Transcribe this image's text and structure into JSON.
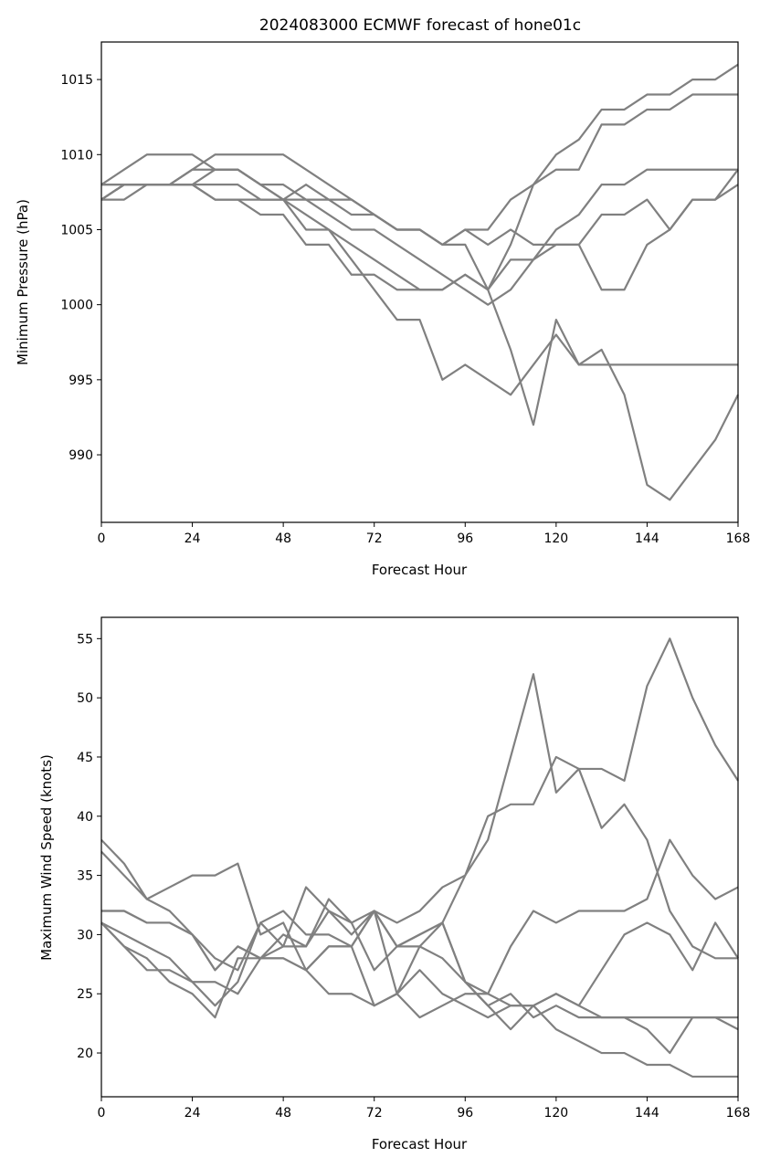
{
  "title": "2024083000 ECMWF forecast of hone01c",
  "line_color": "#808080",
  "chart_data": [
    {
      "type": "line",
      "title": "2024083000 ECMWF forecast of hone01c",
      "xlabel": "Forecast Hour",
      "ylabel": "Minimum Pressure (hPa)",
      "xlim": [
        0,
        168
      ],
      "ylim": [
        985.5,
        1017.5
      ],
      "xticks": [
        0,
        24,
        48,
        72,
        96,
        120,
        144,
        168
      ],
      "yticks": [
        990,
        995,
        1000,
        1005,
        1010,
        1015
      ],
      "grid": false,
      "series": [
        {
          "x": [
            0,
            6,
            12,
            18,
            24,
            30,
            36,
            42,
            48,
            54,
            60,
            66,
            72,
            78,
            84,
            90,
            96,
            102,
            108,
            114,
            120,
            126,
            132,
            138,
            144,
            150,
            156,
            162,
            168
          ],
          "values": [
            1008,
            1008,
            1008,
            1008,
            1008,
            1009,
            1009,
            1008,
            1008,
            1007,
            1007,
            1006,
            1006,
            1005,
            1005,
            1004,
            1005,
            1005,
            1007,
            1008,
            1009,
            1009,
            1012,
            1012,
            1013,
            1013,
            1014,
            1014,
            1014
          ]
        },
        {
          "x": [
            0,
            6,
            12,
            18,
            24,
            30,
            36,
            42,
            48,
            54,
            60,
            66,
            72,
            78,
            84,
            90,
            96,
            102,
            108,
            114,
            120,
            126,
            132,
            138,
            144,
            150,
            156,
            162,
            168
          ],
          "values": [
            1007,
            1008,
            1008,
            1008,
            1009,
            1009,
            1009,
            1008,
            1007,
            1007,
            1006,
            1005,
            1005,
            1004,
            1003,
            1002,
            1001,
            1000,
            1001,
            1003,
            1004,
            1004,
            1006,
            1006,
            1007,
            1005,
            1007,
            1007,
            1009
          ]
        },
        {
          "x": [
            0,
            6,
            12,
            18,
            24,
            30,
            36,
            42,
            48,
            54,
            60,
            66,
            72,
            78,
            84,
            90,
            96,
            102,
            108,
            114,
            120,
            126,
            132,
            138,
            144,
            150,
            156,
            162,
            168
          ],
          "values": [
            1008,
            1009,
            1010,
            1010,
            1010,
            1009,
            1009,
            1008,
            1007,
            1006,
            1005,
            1004,
            1003,
            1002,
            1001,
            1001,
            1002,
            1001,
            1004,
            1008,
            1010,
            1011,
            1013,
            1013,
            1014,
            1014,
            1015,
            1015,
            1016
          ]
        },
        {
          "x": [
            0,
            6,
            12,
            18,
            24,
            30,
            36,
            42,
            48,
            54,
            60,
            66,
            72,
            78,
            84,
            90,
            96,
            102,
            108,
            114,
            120,
            126,
            132,
            138,
            144,
            150,
            156,
            162,
            168
          ],
          "values": [
            1007,
            1007,
            1008,
            1008,
            1008,
            1007,
            1007,
            1006,
            1006,
            1004,
            1004,
            1002,
            1002,
            1001,
            1001,
            1001,
            1002,
            1001,
            1003,
            1003,
            1005,
            1006,
            1008,
            1008,
            1009,
            1009,
            1009,
            1009,
            1009
          ]
        },
        {
          "x": [
            0,
            6,
            12,
            18,
            24,
            30,
            36,
            42,
            48,
            54,
            60,
            66,
            72,
            78,
            84,
            90,
            96,
            102,
            108,
            114,
            120,
            126,
            132,
            138,
            144,
            150,
            156,
            162,
            168
          ],
          "values": [
            1008,
            1008,
            1008,
            1008,
            1009,
            1010,
            1010,
            1010,
            1010,
            1009,
            1008,
            1007,
            1006,
            1005,
            1005,
            1004,
            1005,
            1004,
            1005,
            1004,
            1004,
            1004,
            1001,
            1001,
            1004,
            1005,
            1007,
            1007,
            1008
          ]
        },
        {
          "x": [
            0,
            6,
            12,
            18,
            24,
            30,
            36,
            42,
            48,
            54,
            60,
            66,
            72,
            78,
            84,
            90,
            96,
            102,
            108,
            114,
            120,
            126,
            132,
            138,
            144,
            150,
            156,
            162,
            168
          ],
          "values": [
            1007,
            1008,
            1008,
            1008,
            1008,
            1008,
            1008,
            1007,
            1007,
            1005,
            1005,
            1003,
            1001,
            999,
            999,
            995,
            996,
            995,
            994,
            996,
            998,
            996,
            997,
            994,
            988,
            987,
            989,
            991,
            994
          ]
        },
        {
          "x": [
            0,
            6,
            12,
            18,
            24,
            30,
            36,
            42,
            48,
            54,
            60,
            66,
            72,
            78,
            84,
            90,
            96,
            102,
            108,
            114,
            120,
            126,
            132,
            138,
            144,
            150,
            156,
            162,
            168
          ],
          "values": [
            1007,
            1008,
            1008,
            1008,
            1008,
            1007,
            1007,
            1007,
            1007,
            1008,
            1007,
            1007,
            1006,
            1005,
            1005,
            1004,
            1004,
            1001,
            997,
            992,
            999,
            996,
            996,
            996,
            996,
            996,
            996,
            996,
            996
          ]
        }
      ]
    },
    {
      "type": "line",
      "title": "",
      "xlabel": "Forecast Hour",
      "ylabel": "Maximum Wind Speed (knots)",
      "xlim": [
        0,
        168
      ],
      "ylim": [
        16.3,
        56.8
      ],
      "xticks": [
        0,
        24,
        48,
        72,
        96,
        120,
        144,
        168
      ],
      "yticks": [
        20,
        25,
        30,
        35,
        40,
        45,
        50,
        55
      ],
      "grid": false,
      "series": [
        {
          "x": [
            0,
            6,
            12,
            18,
            24,
            30,
            36,
            42,
            48,
            54,
            60,
            66,
            72,
            78,
            84,
            90,
            96,
            102,
            108,
            114,
            120,
            126,
            132,
            138,
            144,
            150,
            156,
            162,
            168
          ],
          "values": [
            38,
            36,
            33,
            32,
            30,
            27,
            29,
            28,
            28,
            27,
            29,
            29,
            24,
            25,
            29,
            31,
            26,
            24,
            25,
            23,
            24,
            23,
            23,
            23,
            22,
            20,
            23,
            23,
            22
          ]
        },
        {
          "x": [
            0,
            6,
            12,
            18,
            24,
            30,
            36,
            42,
            48,
            54,
            60,
            66,
            72,
            78,
            84,
            90,
            96,
            102,
            108,
            114,
            120,
            126,
            132,
            138,
            144,
            150,
            156,
            162,
            168
          ],
          "values": [
            37,
            35,
            33,
            34,
            35,
            35,
            36,
            30,
            31,
            27,
            29,
            29,
            32,
            31,
            32,
            34,
            35,
            40,
            41,
            41,
            45,
            44,
            44,
            43,
            51,
            55,
            50,
            46,
            43
          ]
        },
        {
          "x": [
            0,
            6,
            12,
            18,
            24,
            30,
            36,
            42,
            48,
            54,
            60,
            66,
            72,
            78,
            84,
            90,
            96,
            102,
            108,
            114,
            120,
            126,
            132,
            138,
            144,
            150,
            156,
            162,
            168
          ],
          "values": [
            32,
            32,
            31,
            31,
            30,
            28,
            27,
            31,
            32,
            30,
            30,
            29,
            32,
            29,
            29,
            28,
            26,
            25,
            29,
            32,
            31,
            32,
            32,
            32,
            33,
            38,
            35,
            33,
            34
          ]
        },
        {
          "x": [
            0,
            6,
            12,
            18,
            24,
            30,
            36,
            42,
            48,
            54,
            60,
            66,
            72,
            78,
            84,
            90,
            96,
            102,
            108,
            114,
            120,
            126,
            132,
            138,
            144,
            150,
            156,
            162,
            168
          ],
          "values": [
            31,
            30,
            29,
            28,
            26,
            26,
            25,
            28,
            30,
            29,
            32,
            30,
            32,
            29,
            30,
            31,
            26,
            24,
            22,
            24,
            25,
            24,
            27,
            30,
            31,
            30,
            27,
            31,
            28
          ]
        },
        {
          "x": [
            0,
            6,
            12,
            18,
            24,
            30,
            36,
            42,
            48,
            54,
            60,
            66,
            72,
            78,
            84,
            90,
            96,
            102,
            108,
            114,
            120,
            126,
            132,
            138,
            144,
            150,
            156,
            162,
            168
          ],
          "values": [
            31,
            29,
            27,
            27,
            26,
            24,
            26,
            31,
            29,
            34,
            32,
            31,
            27,
            29,
            30,
            31,
            35,
            38,
            45,
            52,
            42,
            44,
            39,
            41,
            38,
            32,
            29,
            28,
            28
          ]
        },
        {
          "x": [
            0,
            6,
            12,
            18,
            24,
            30,
            36,
            42,
            48,
            54,
            60,
            66,
            72,
            78,
            84,
            90,
            96,
            102,
            108,
            114,
            120,
            126,
            132,
            138,
            144,
            150,
            156,
            162,
            168
          ],
          "values": [
            31,
            29,
            28,
            26,
            25,
            23,
            28,
            28,
            28,
            27,
            25,
            25,
            24,
            25,
            27,
            25,
            24,
            23,
            24,
            24,
            22,
            21,
            20,
            20,
            19,
            19,
            18,
            18,
            18
          ]
        },
        {
          "x": [
            0,
            6,
            12,
            18,
            24,
            30,
            36,
            42,
            48,
            54,
            60,
            66,
            72,
            78,
            84,
            90,
            96,
            102,
            108,
            114,
            120,
            126,
            132,
            138,
            144,
            150,
            156,
            162,
            168
          ],
          "values": [
            32,
            32,
            31,
            31,
            30,
            27,
            29,
            28,
            29,
            29,
            33,
            31,
            32,
            25,
            23,
            24,
            25,
            25,
            24,
            24,
            25,
            24,
            23,
            23,
            23,
            23,
            23,
            23,
            23
          ]
        }
      ]
    }
  ]
}
